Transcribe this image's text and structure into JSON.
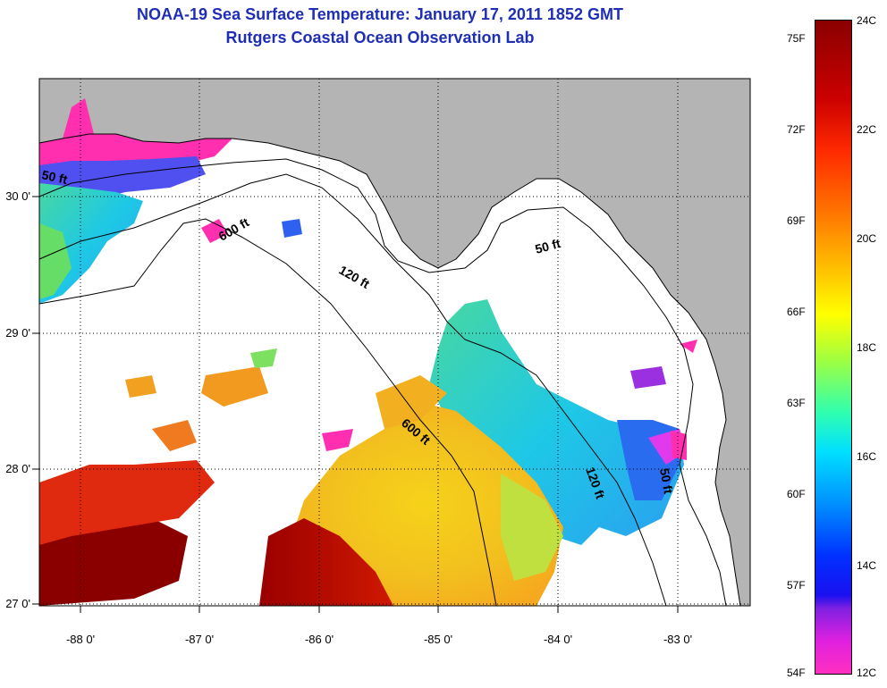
{
  "title": "NOAA-19 Sea Surface Temperature:  January 17, 2011 1852 GMT",
  "subtitle": "Rutgers Coastal Ocean Observation Lab",
  "map": {
    "lon_ticks": [
      "-88 0'",
      "-87 0'",
      "-86 0'",
      "-85 0'",
      "-84 0'",
      "-83 0'"
    ],
    "lat_ticks": [
      "30 0'",
      "29 0'",
      "28 0'",
      "27 0'"
    ],
    "contours": [
      "50 ft",
      "600 ft",
      "120 ft",
      "50 ft",
      "600 ft",
      "120 ft",
      "50 ft"
    ],
    "colors": {
      "land": "#b4b4b4",
      "nodata": "#ffffff"
    }
  },
  "colorbar": {
    "fahrenheit": [
      "75F",
      "72F",
      "69F",
      "66F",
      "63F",
      "60F",
      "57F",
      "54F"
    ],
    "celsius": [
      "24C",
      "22C",
      "20C",
      "18C",
      "16C",
      "14C",
      "12C"
    ]
  }
}
